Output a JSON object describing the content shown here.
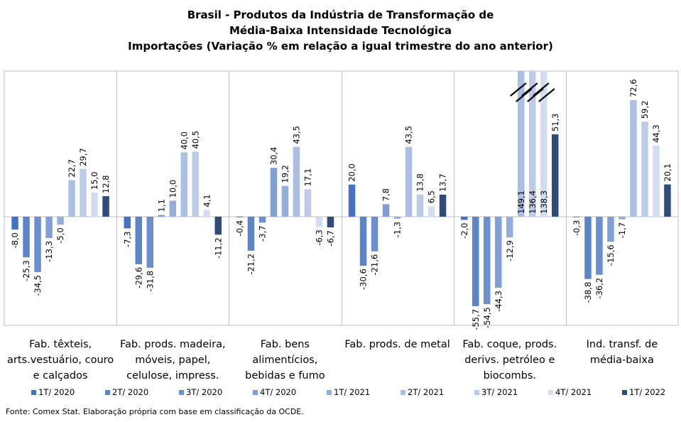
{
  "chart_data": {
    "type": "bar",
    "title": "Brasil - Produtos da Indústria de Transformação de",
    "subtitle": "Média-Baixa Intensidade Tecnológica",
    "subtitle2": "Importações (Variação % em relação a igual trimestre do ano anterior)",
    "categories": [
      [
        "Fab. têxteis,",
        "arts.vestuário, couro",
        "e calçados"
      ],
      [
        "Fab. prods. madeira,",
        "móveis, papel,",
        "celulose, impress."
      ],
      [
        "Fab. bens",
        "alimentícios,",
        "bebidas e fumo"
      ],
      [
        "Fab. prods. de metal"
      ],
      [
        "Fab. coque, prods.",
        "derivs. petróleo e",
        "biocombs."
      ],
      [
        "Ind. transf. de",
        "média-baixa"
      ]
    ],
    "series": [
      {
        "name": "1T/ 2020",
        "color": "#4472c4",
        "values": [
          -8.0,
          -7.3,
          -0.4,
          20.0,
          -2.0,
          -0.3
        ],
        "labels": [
          "-8,0",
          "-7,3",
          "-0,4",
          "20,0",
          "-2,0",
          "-0,3"
        ]
      },
      {
        "name": "2T/ 2020",
        "color": "#5b84c9",
        "values": [
          -25.3,
          -29.6,
          -21.2,
          -30.6,
          -55.7,
          -38.8
        ],
        "labels": [
          "-25,3",
          "-29,6",
          "-21,2",
          "-30,6",
          "-55,7",
          "-38,8"
        ]
      },
      {
        "name": "3T/ 2020",
        "color": "#6b8fcf",
        "values": [
          -34.5,
          -31.8,
          -3.7,
          -21.6,
          -54.5,
          -36.2
        ],
        "labels": [
          "-34,5",
          "-31,8",
          "-3,7",
          "-21,6",
          "-54,5",
          "-36,2"
        ]
      },
      {
        "name": "4T/ 2020",
        "color": "#7f9fd6",
        "values": [
          -13.3,
          1.1,
          30.4,
          7.8,
          -44.3,
          -15.6
        ],
        "labels": [
          "-13,3",
          "1,1",
          "30,4",
          "7,8",
          "-44,3",
          "-15,6"
        ]
      },
      {
        "name": "1T/ 2021",
        "color": "#95afdc",
        "values": [
          -5.0,
          10.0,
          19.2,
          -1.3,
          -12.9,
          -1.7
        ],
        "labels": [
          "-5,0",
          "10,0",
          "19,2",
          "-1,3",
          "-12,9",
          "-1,7"
        ]
      },
      {
        "name": "2T/ 2021",
        "color": "#a9bfe3",
        "values": [
          22.7,
          40.0,
          43.5,
          43.5,
          149.1,
          72.6
        ],
        "labels": [
          "22,7",
          "40,0",
          "43,5",
          "43,5",
          "149,1",
          "72,6"
        ]
      },
      {
        "name": "3T/ 2021",
        "color": "#bccbe8",
        "values": [
          29.7,
          40.5,
          17.1,
          13.8,
          136.4,
          59.2
        ],
        "labels": [
          "29,7",
          "40,5",
          "17,1",
          "13,8",
          "136,4",
          "59,2"
        ]
      },
      {
        "name": "4T/ 2021",
        "color": "#d3ddf0",
        "values": [
          15.0,
          4.1,
          -6.3,
          6.5,
          138.3,
          44.3
        ],
        "labels": [
          "15,0",
          "4,1",
          "-6,3",
          "6,5",
          "138,3",
          "44,3"
        ]
      },
      {
        "name": "1T/ 2022",
        "color": "#2f4b7c",
        "values": [
          12.8,
          -11.2,
          -6.7,
          13.7,
          51.3,
          20.1
        ],
        "labels": [
          "12,8",
          "-11,2",
          "-6,7",
          "13,7",
          "51,3",
          "20,1"
        ]
      }
    ],
    "ylim": [
      -60,
      80
    ],
    "axis_break": true,
    "grid": false,
    "legend_position": "bottom",
    "source": "Fonte: Comex Stat. Elaboração própria com base em classificação da OCDE."
  }
}
